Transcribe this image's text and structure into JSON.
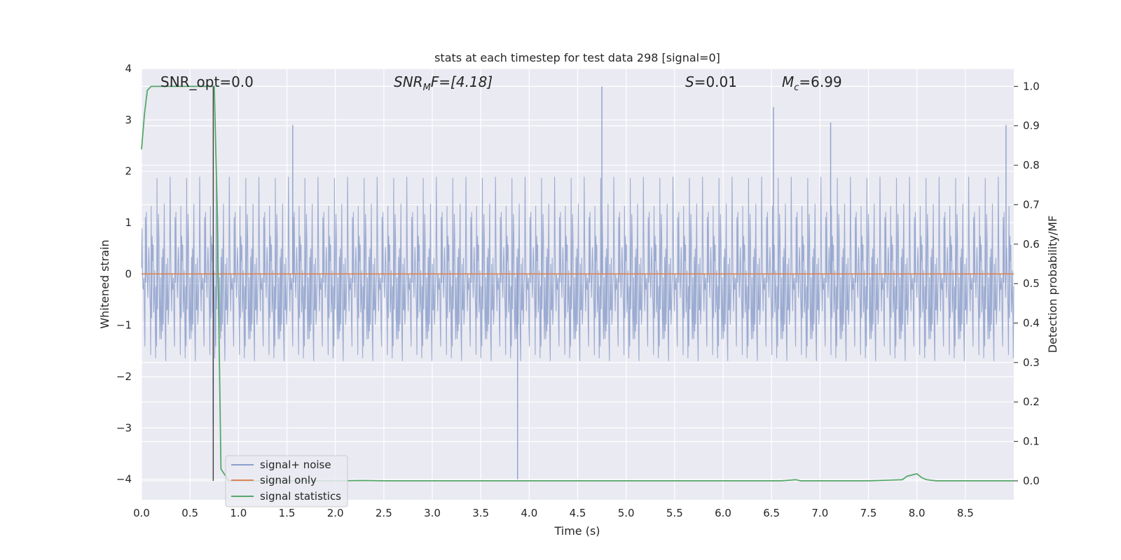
{
  "chart_data": {
    "type": "line",
    "title": "stats at each timestep for test data 298 [signal=0]",
    "xlabel": "Time (s)",
    "ylabel": "Whitened strain",
    "y2label": "Detection probability/MF",
    "xlim": [
      0.0,
      9.0
    ],
    "ylim": [
      -4.4,
      4.0
    ],
    "y2lim": [
      -0.048,
      1.045
    ],
    "xticks": [
      "0.0",
      "0.5",
      "1.0",
      "1.5",
      "2.0",
      "2.5",
      "3.0",
      "3.5",
      "4.0",
      "4.5",
      "5.0",
      "5.5",
      "6.0",
      "6.5",
      "7.0",
      "7.5",
      "8.0",
      "8.5"
    ],
    "yticks": [
      "4",
      "3",
      "2",
      "1",
      "0",
      "−1",
      "−2",
      "−3",
      "−4"
    ],
    "y2ticks": [
      "1.0",
      "0.9",
      "0.8",
      "0.7",
      "0.6",
      "0.5",
      "0.4",
      "0.3",
      "0.2",
      "0.1",
      "0.0"
    ],
    "grid": true,
    "legend_position": "bottom-left",
    "annotations": {
      "snr_opt": "SNR_opt=0.0",
      "snr_mf_base": "SNR",
      "snr_mf_sub": "M",
      "snr_mf_rest": "F=[4.18]",
      "s_label": "S",
      "s_value": "=0.01",
      "mc_base": "M",
      "mc_sub": "c",
      "mc_value": "=6.99"
    },
    "series": [
      {
        "name": "signal+ noise",
        "color": "#8da0cb",
        "description_values": "whitened strain noise, roughly within ±2 with spikes",
        "spikes": [
          {
            "x": 0.74,
            "y": -2.9
          },
          {
            "x": 1.56,
            "y": 2.9
          },
          {
            "x": 3.88,
            "y": -4.0
          },
          {
            "x": 4.75,
            "y": 3.65
          },
          {
            "x": 6.52,
            "y": 3.25
          },
          {
            "x": 7.11,
            "y": 2.95
          },
          {
            "x": 8.92,
            "y": 2.9
          }
        ]
      },
      {
        "name": "signal only",
        "color": "#dd8452",
        "x": [
          0.0,
          9.0
        ],
        "y": [
          0.0,
          0.0
        ]
      },
      {
        "name": "signal statistics",
        "color": "#55a868",
        "axis": "right",
        "x": [
          0.0,
          0.03,
          0.06,
          0.1,
          0.15,
          0.2,
          0.3,
          0.4,
          0.5,
          0.6,
          0.7,
          0.73,
          0.75,
          0.78,
          0.82,
          0.9,
          1.0,
          1.5,
          2.0,
          2.3,
          2.5,
          3.0,
          4.0,
          5.0,
          6.0,
          6.6,
          6.75,
          6.8,
          7.0,
          7.5,
          7.85,
          7.9,
          7.95,
          8.0,
          8.05,
          8.1,
          8.2,
          8.5,
          9.0
        ],
        "y": [
          0.84,
          0.93,
          0.99,
          1.0,
          1.0,
          1.0,
          1.0,
          1.0,
          1.0,
          1.0,
          1.0,
          1.0,
          1.0,
          0.7,
          0.03,
          0.0,
          0.0,
          0.0,
          0.0,
          0.001,
          0.0,
          0.0,
          0.0,
          0.0,
          0.0,
          0.0,
          0.003,
          0.0,
          0.0,
          0.0,
          0.003,
          0.012,
          0.015,
          0.018,
          0.008,
          0.003,
          0.0,
          0.0,
          0.0
        ]
      }
    ],
    "vertical_marker": {
      "x": 0.74,
      "color": "#404040"
    }
  }
}
